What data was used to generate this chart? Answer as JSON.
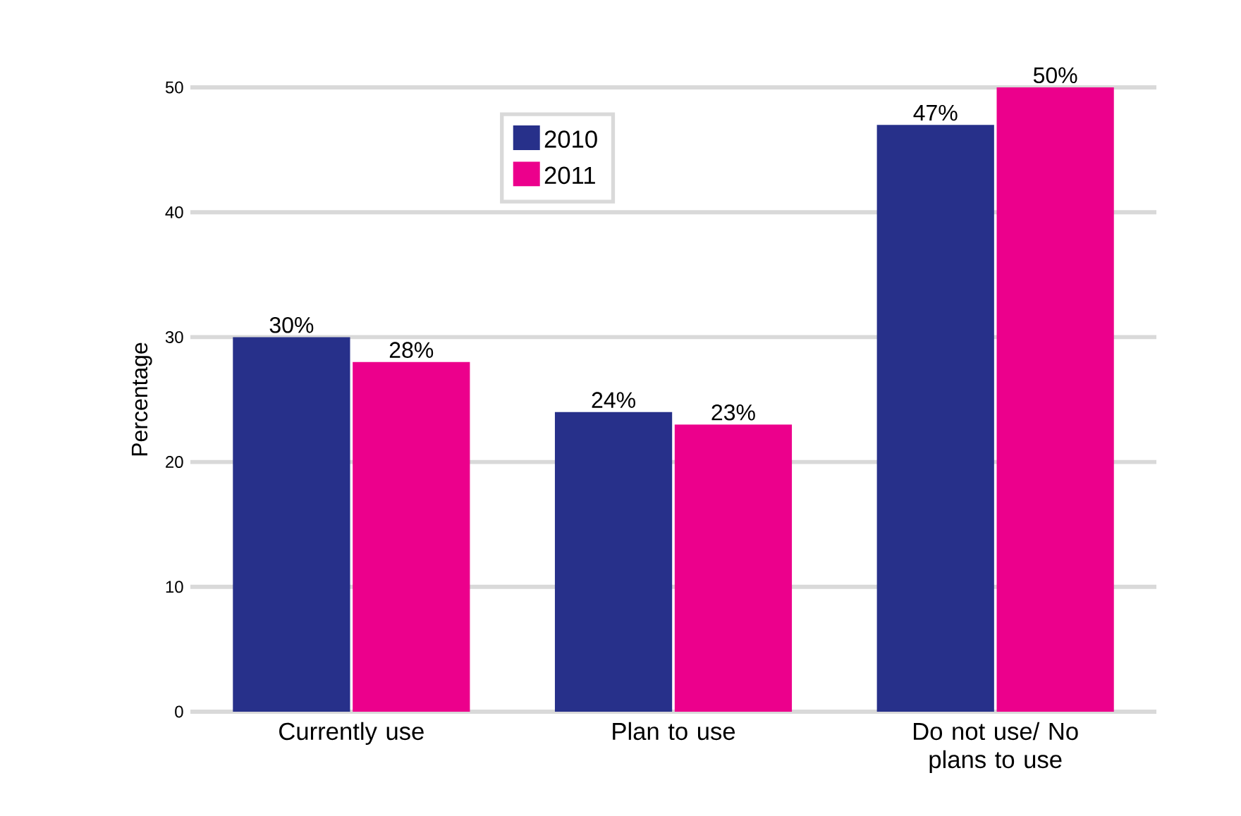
{
  "chart_data": {
    "type": "bar",
    "ylabel": "Percentage",
    "categories": [
      "Currently use",
      "Plan to use",
      "Do not use/ No plans to use"
    ],
    "series": [
      {
        "name": "2010",
        "color": "#27308a",
        "values": [
          30,
          24,
          47
        ],
        "value_labels": [
          "30%",
          "24%",
          "47%"
        ]
      },
      {
        "name": "2011",
        "color": "#ec008c",
        "values": [
          28,
          23,
          50
        ],
        "value_labels": [
          "28%",
          "23%",
          "50%"
        ]
      }
    ],
    "ylim": [
      0,
      50
    ],
    "yticks": [
      0,
      10,
      20,
      30,
      40,
      50
    ],
    "grid": "y",
    "legend": "top"
  }
}
